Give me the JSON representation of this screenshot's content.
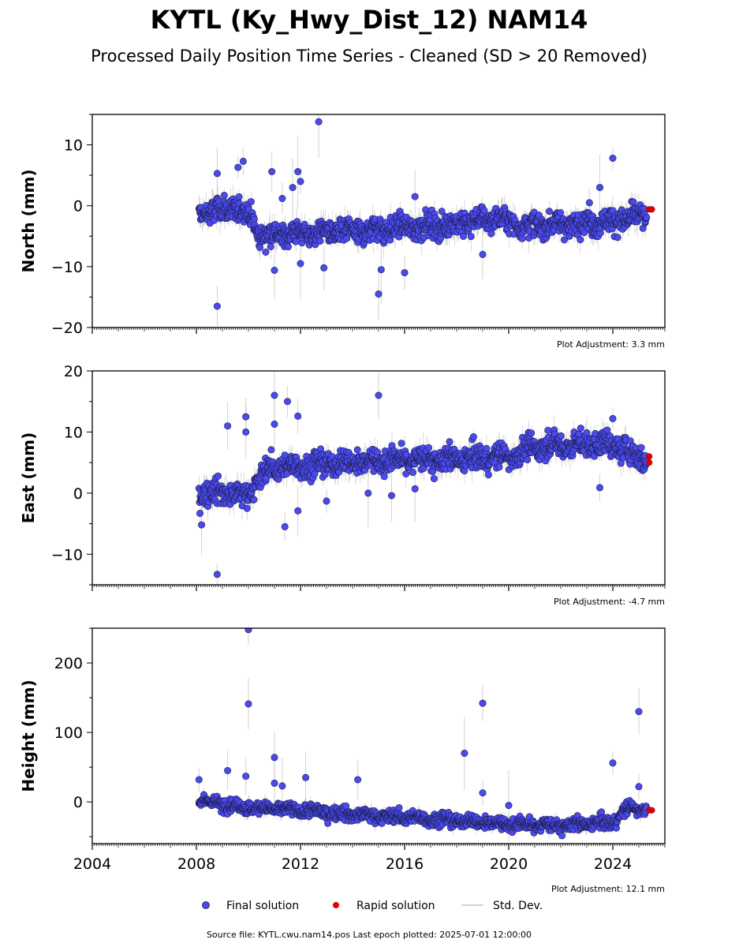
{
  "title": "KYTL (Ky_Hwy_Dist_12) NAM14",
  "subtitle": "Processed Daily Position Time Series - Cleaned (SD > 20 Removed)",
  "footer": "Source file: KYTL.cwu.nam14.pos  Last epoch plotted: 2025-07-01 12:00:00",
  "colors": {
    "final": "#4a4af0",
    "rapid": "#e00000",
    "std": "#b4b4b4",
    "edge": "#1a1a40"
  },
  "legend": {
    "final": "Final solution",
    "rapid": "Rapid solution",
    "std": "Std. Dev."
  },
  "chart_data": [
    {
      "type": "scatter",
      "ylabel": "North (mm)",
      "adjustment": "Plot Adjustment: 3.3 mm",
      "xlim": [
        2004,
        2026
      ],
      "ylim": [
        -20,
        15
      ],
      "yticks": [
        -20,
        -10,
        0,
        10
      ],
      "ytick_labels": [
        "−20",
        "−10",
        "0",
        "10"
      ],
      "xticks": [
        2004,
        2008,
        2012,
        2016,
        2020,
        2024
      ],
      "xtick_labels": [],
      "trend": [
        [
          2008.1,
          -1.2
        ],
        [
          2009.5,
          -0.5
        ],
        [
          2010.1,
          -1.5
        ],
        [
          2010.4,
          -4.8
        ],
        [
          2012.0,
          -4.5
        ],
        [
          2014.0,
          -4.2
        ],
        [
          2016.0,
          -3.5
        ],
        [
          2018.0,
          -3.0
        ],
        [
          2019.5,
          -2.0
        ],
        [
          2020.5,
          -3.2
        ],
        [
          2022.0,
          -3.0
        ],
        [
          2024.0,
          -2.5
        ],
        [
          2025.3,
          -1.5
        ]
      ],
      "scatter_sd": 1.4,
      "outliers": [
        [
          2008.8,
          -16.5
        ],
        [
          2008.8,
          5.3
        ],
        [
          2009.6,
          6.3
        ],
        [
          2009.8,
          7.3
        ],
        [
          2010.9,
          5.6
        ],
        [
          2011.0,
          -10.6
        ],
        [
          2011.3,
          1.2
        ],
        [
          2011.7,
          3.0
        ],
        [
          2011.9,
          5.6
        ],
        [
          2012.0,
          4.0
        ],
        [
          2012.0,
          -9.5
        ],
        [
          2012.7,
          13.8
        ],
        [
          2012.9,
          -10.2
        ],
        [
          2015.0,
          -14.5
        ],
        [
          2015.1,
          -10.5
        ],
        [
          2016.0,
          -11.0
        ],
        [
          2016.4,
          1.5
        ],
        [
          2019.0,
          -8.0
        ],
        [
          2023.5,
          3.0
        ],
        [
          2024.0,
          7.8
        ],
        [
          2023.1,
          0.5
        ]
      ],
      "rapid": [
        [
          2025.4,
          -0.6
        ],
        [
          2025.5,
          -0.6
        ]
      ]
    },
    {
      "type": "scatter",
      "ylabel": "East (mm)",
      "adjustment": "Plot Adjustment: -4.7 mm",
      "xlim": [
        2004,
        2026
      ],
      "ylim": [
        -15,
        20
      ],
      "yticks": [
        -10,
        0,
        10,
        20
      ],
      "ytick_labels": [
        "−10",
        "0",
        "10",
        "20"
      ],
      "xticks": [
        2004,
        2008,
        2012,
        2016,
        2020,
        2024
      ],
      "xtick_labels": [],
      "trend": [
        [
          2008.1,
          0.0
        ],
        [
          2009.0,
          0.2
        ],
        [
          2009.9,
          -0.5
        ],
        [
          2010.7,
          4.0
        ],
        [
          2012.0,
          4.5
        ],
        [
          2014.0,
          5.0
        ],
        [
          2016.0,
          5.5
        ],
        [
          2018.0,
          5.5
        ],
        [
          2020.0,
          6.0
        ],
        [
          2021.0,
          7.5
        ],
        [
          2022.0,
          7.8
        ],
        [
          2024.0,
          8.0
        ],
        [
          2025.3,
          5.5
        ]
      ],
      "scatter_sd": 1.4,
      "outliers": [
        [
          2008.8,
          -13.3
        ],
        [
          2009.2,
          11.0
        ],
        [
          2009.9,
          12.5
        ],
        [
          2009.9,
          10.0
        ],
        [
          2011.0,
          16.0
        ],
        [
          2011.0,
          11.3
        ],
        [
          2011.4,
          -5.5
        ],
        [
          2011.5,
          15.0
        ],
        [
          2011.9,
          12.6
        ],
        [
          2011.9,
          -2.9
        ],
        [
          2013.0,
          -1.3
        ],
        [
          2014.6,
          0.0
        ],
        [
          2015.0,
          16.0
        ],
        [
          2015.5,
          -0.4
        ],
        [
          2016.4,
          0.7
        ],
        [
          2023.5,
          0.9
        ],
        [
          2024.0,
          12.2
        ],
        [
          2008.2,
          -5.2
        ]
      ],
      "rapid": [
        [
          2025.4,
          6.0
        ],
        [
          2025.4,
          5.0
        ]
      ]
    },
    {
      "type": "scatter",
      "ylabel": "Height (mm)",
      "adjustment": "Plot Adjustment: 12.1 mm",
      "xlim": [
        2004,
        2026
      ],
      "ylim": [
        -60,
        250
      ],
      "yticks": [
        0,
        100,
        200
      ],
      "ytick_labels": [
        "0",
        "100",
        "200"
      ],
      "xticks": [
        2004,
        2008,
        2012,
        2016,
        2020,
        2024
      ],
      "xtick_labels": [
        "2004",
        "2008",
        "2012",
        "2016",
        "2020",
        "2024"
      ],
      "trend": [
        [
          2008.1,
          2.0
        ],
        [
          2010.0,
          -8.0
        ],
        [
          2012.0,
          -12.0
        ],
        [
          2014.0,
          -18.0
        ],
        [
          2016.0,
          -22.0
        ],
        [
          2018.0,
          -27.0
        ],
        [
          2020.0,
          -32.0
        ],
        [
          2022.0,
          -34.0
        ],
        [
          2024.0,
          -30.0
        ],
        [
          2024.6,
          -8.0
        ],
        [
          2025.3,
          -10.0
        ]
      ],
      "scatter_sd": 6.5,
      "outliers": [
        [
          2010.0,
          248.0
        ],
        [
          2010.0,
          141.0
        ],
        [
          2019.0,
          142.0
        ],
        [
          2025.0,
          130.0
        ],
        [
          2018.3,
          70.0
        ],
        [
          2011.0,
          64.0
        ],
        [
          2024.0,
          56.0
        ],
        [
          2009.2,
          45.0
        ],
        [
          2009.9,
          37.0
        ],
        [
          2008.1,
          32.0
        ],
        [
          2012.2,
          35.0
        ],
        [
          2014.2,
          32.0
        ],
        [
          2011.0,
          27.0
        ],
        [
          2011.3,
          23.0
        ],
        [
          2025.0,
          22.0
        ],
        [
          2019.0,
          13.0
        ],
        [
          2020.0,
          -5.0
        ]
      ],
      "rapid": [
        [
          2025.4,
          -12.0
        ],
        [
          2025.5,
          -12.0
        ]
      ]
    }
  ]
}
